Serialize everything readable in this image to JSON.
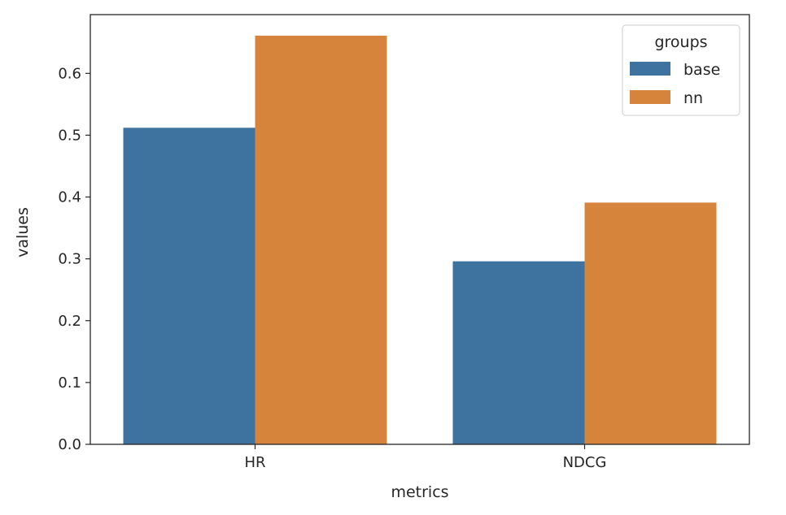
{
  "chart_data": {
    "type": "bar",
    "categories": [
      "HR",
      "NDCG"
    ],
    "series": [
      {
        "name": "base",
        "values": [
          0.512,
          0.296
        ],
        "color": "#3e729f"
      },
      {
        "name": "nn",
        "values": [
          0.661,
          0.391
        ],
        "color": "#d6843c"
      }
    ],
    "xlabel": "metrics",
    "ylabel": "values",
    "ylim": [
      0,
      0.695
    ],
    "yticks": [
      "0.0",
      "0.1",
      "0.2",
      "0.3",
      "0.4",
      "0.5",
      "0.6"
    ],
    "legend": {
      "title": "groups",
      "position": "top-right"
    },
    "grid": false
  }
}
